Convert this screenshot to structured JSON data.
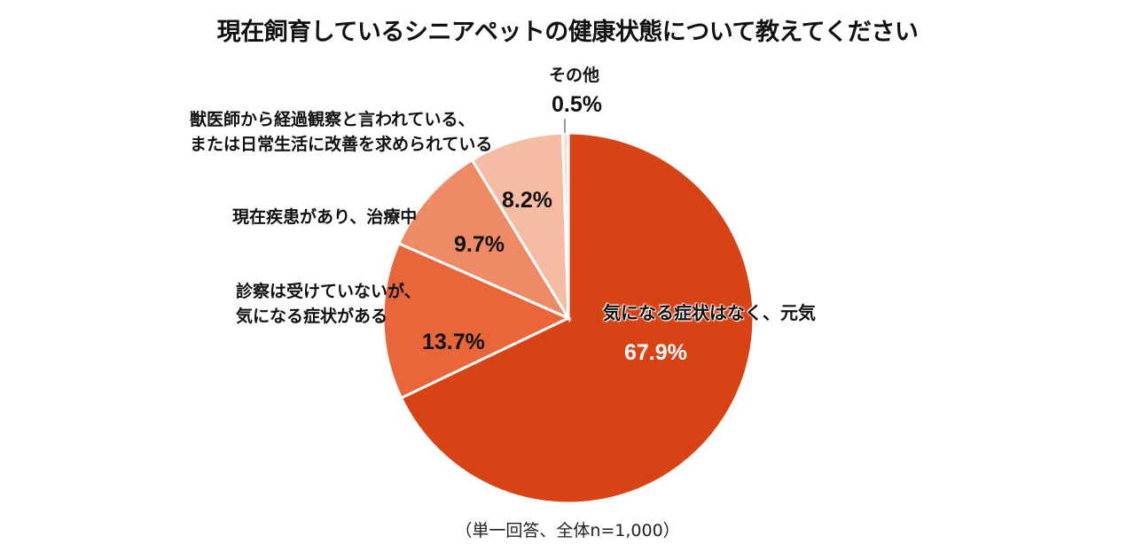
{
  "title": "現在飼育しているシニアペットの健康状態について教えてください",
  "footnote": "（単一回答、全体n=1,000）",
  "colors": {
    "genki": "#D84315",
    "shinsatsu_nashi": "#E8663A",
    "chiryou": "#EE8A65",
    "keika": "#F5BBA3",
    "sonota": "#F8DCCF"
  },
  "labels": {
    "genki": "気になる症状はなく、元気",
    "genki_pct": "67.9%",
    "shinsatsu_line1": "診察は受けていないが、",
    "shinsatsu_line2": "気になる症状がある",
    "shinsatsu_pct": "13.7%",
    "chiryou": "現在疾患があり、治療中",
    "chiryou_pct": "9.7%",
    "keika_line1": "獣医師から経過観察と言われている、",
    "keika_line2": "または日常生活に改善を求められている",
    "keika_pct": "8.2%",
    "sonota": "その他",
    "sonota_pct": "0.5%"
  },
  "chart_data": {
    "type": "pie",
    "title": "現在飼育しているシニアペットの健康状態について教えてください",
    "categories": [
      "気になる症状はなく、元気",
      "診察は受けていないが、気になる症状がある",
      "現在疾患があり、治療中",
      "獣医師から経過観察と言われている、または日常生活に改善を求められている",
      "その他"
    ],
    "values": [
      67.9,
      13.7,
      9.7,
      8.2,
      0.5
    ],
    "unit": "%",
    "start_angle": "12 o'clock, clockwise",
    "note": "（単一回答、全体n=1,000）",
    "legend": "none (direct labels)"
  }
}
